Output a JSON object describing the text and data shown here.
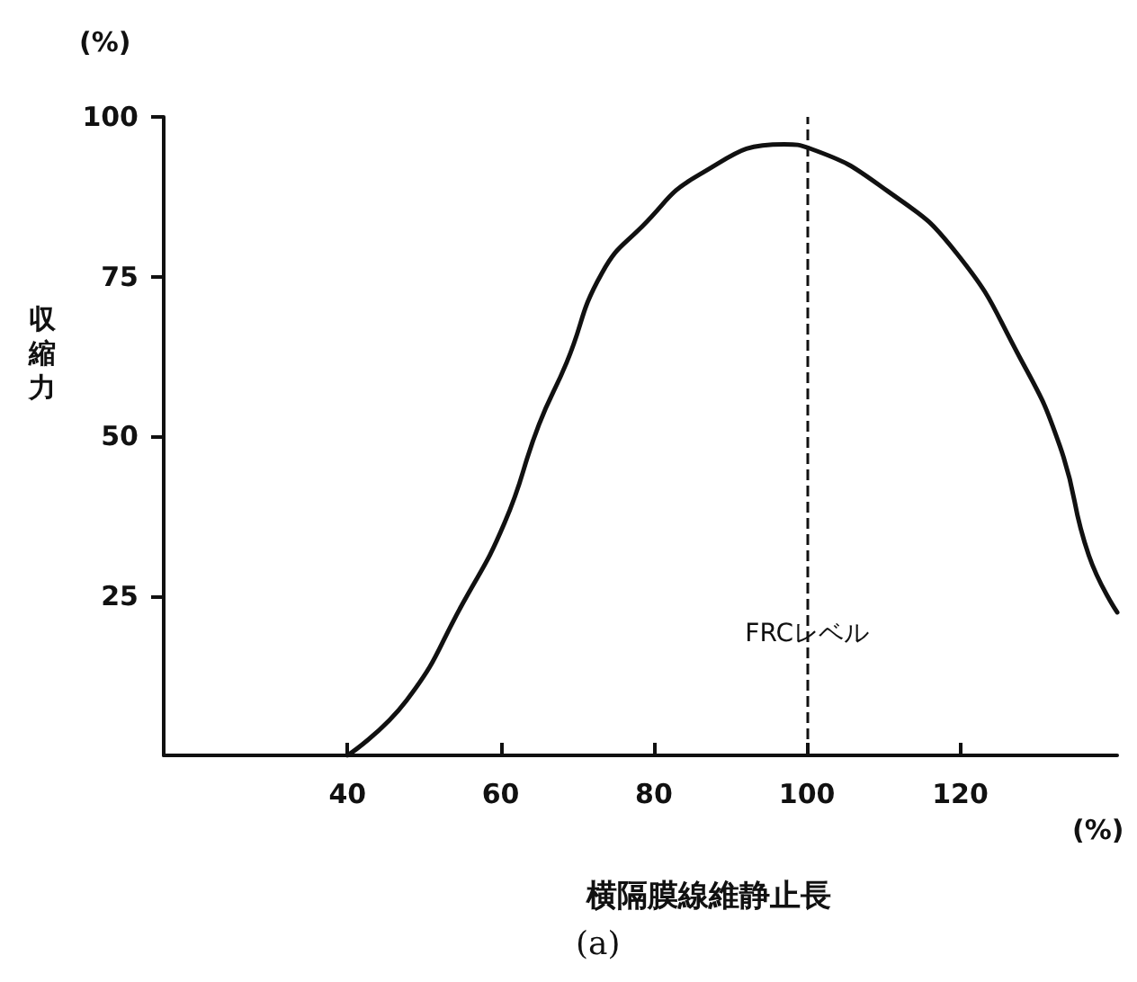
{
  "chart_data": {
    "type": "line",
    "xlabel": "横隔膜線維静止長",
    "ylabel": "収縮力",
    "annotations": [
      "(%)",
      "(%)",
      "(a)",
      {
        "text": "FRCレベル",
        "x": 100,
        "y": 19
      }
    ],
    "series": [
      {
        "color": "#111111",
        "x": [
          40,
          47.7,
          55,
          60.5,
          65,
          68.6,
          73.2,
          78.6,
          86,
          97,
          100.5,
          110.5,
          119.5,
          127.7,
          133,
          136.8,
          140.5
        ],
        "values": [
          0,
          8.6,
          23.7,
          36.4,
          51.8,
          61.5,
          75.5,
          83,
          91,
          95.7,
          95,
          88.4,
          78.7,
          62.5,
          48.5,
          31.3,
          22.4
        ]
      }
    ],
    "xlim": [
      16,
      140.5
    ],
    "xticks": [
      40,
      60,
      80,
      100,
      120
    ],
    "ylim": [
      0,
      100
    ],
    "yticks": [
      25,
      50,
      75,
      100
    ],
    "ref_lines": [
      {
        "axis": "x",
        "value": 100,
        "line_style": "dashed",
        "color": "#111111"
      }
    ],
    "marker": "none",
    "line_style": "solid"
  }
}
